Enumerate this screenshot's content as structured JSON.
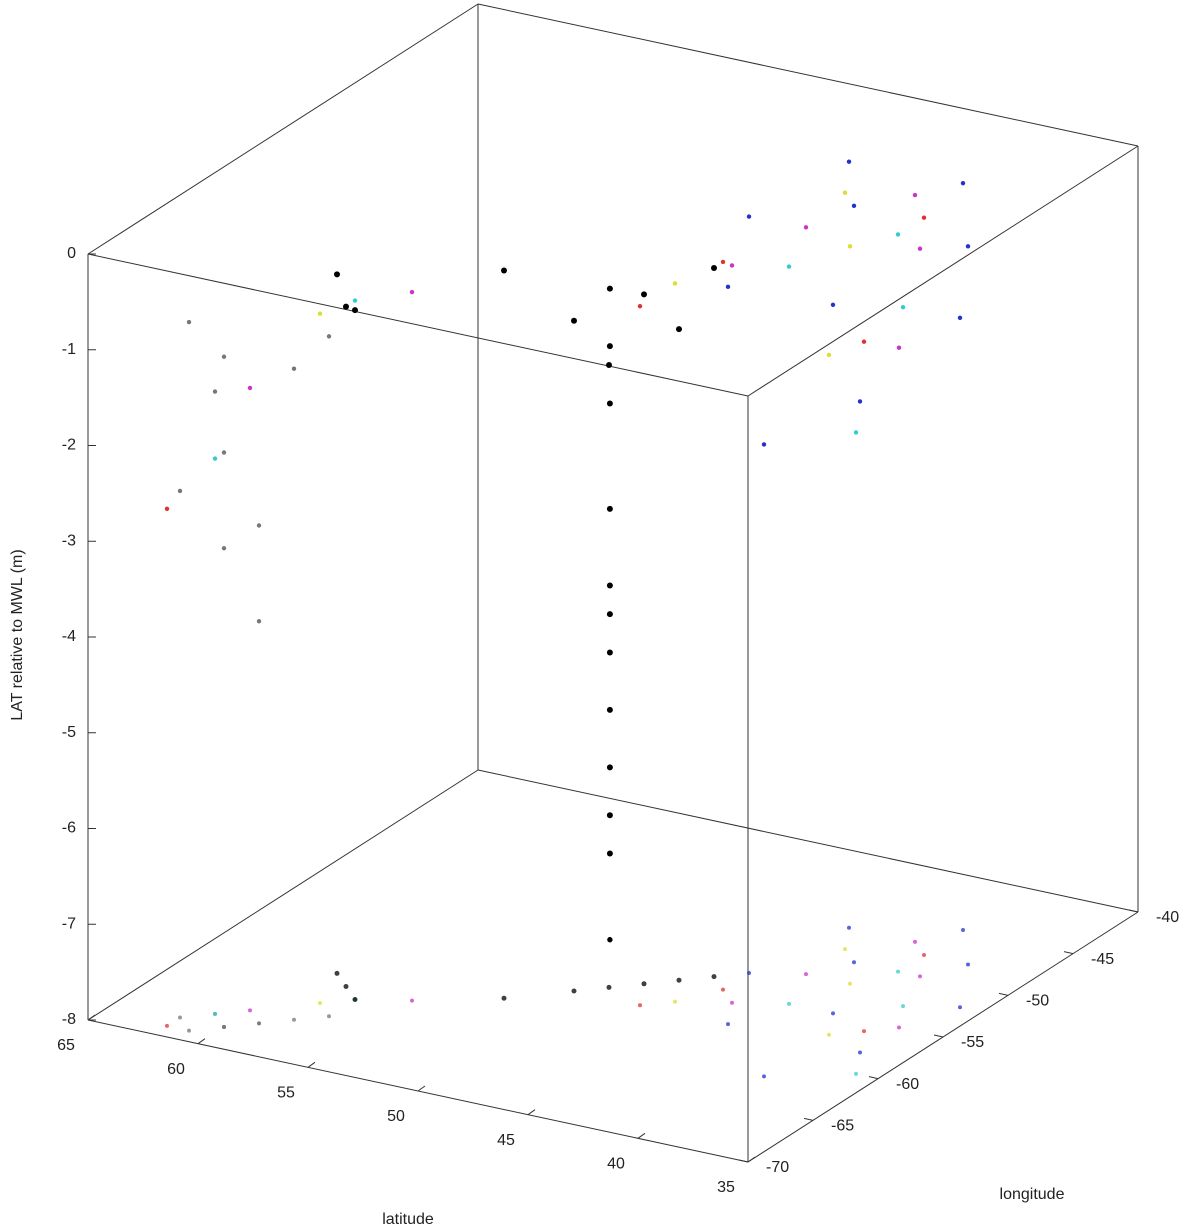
{
  "chart_data": {
    "type": "scatter3d",
    "xlabel": "latitude",
    "ylabel": "longitude",
    "zlabel": "LAT relative to MWL (m)",
    "xlim": [
      35,
      65
    ],
    "xticks": [
      35,
      40,
      45,
      50,
      55,
      60,
      65
    ],
    "ylim": [
      -70,
      -40
    ],
    "yticks": [
      -70,
      -65,
      -60,
      -55,
      -50,
      -45,
      -40
    ],
    "zlim": [
      -8,
      0
    ],
    "zticks": [
      -8,
      -7,
      -6,
      -5,
      -4,
      -3,
      -2,
      -1,
      0
    ],
    "floor_projection": true,
    "series": [
      {
        "color": "#777777",
        "x": [
          60,
          60,
          60,
          59,
          61,
          58,
          62,
          57,
          61,
          59
        ],
        "y": [
          -68,
          -68,
          -68,
          -67,
          -67,
          -66,
          -68,
          -65,
          -69,
          -67
        ],
        "z": [
          -1,
          -2,
          -3,
          -3.8,
          -1.5,
          -1.2,
          -2.5,
          -0.9,
          -0.6,
          -2.8
        ]
      },
      {
        "color": "#2233cc",
        "x": [
          40,
          38,
          42,
          36,
          44,
          40,
          37,
          45,
          43,
          39
        ],
        "y": [
          -45,
          -48,
          -50,
          -52,
          -47,
          -55,
          -58,
          -53,
          -58,
          -62
        ],
        "z": [
          -0.2,
          -0.5,
          -0.1,
          -0.8,
          0,
          -0.6,
          -1.2,
          -0.1,
          -0.3,
          -1.4
        ]
      },
      {
        "color": "#cc33cc",
        "x": [
          41,
          39,
          43,
          37,
          55,
          60,
          44
        ],
        "y": [
          -47,
          -50,
          -52,
          -55,
          -62,
          -66,
          -56
        ],
        "z": [
          -0.2,
          -0.4,
          -0.2,
          -0.9,
          -0.6,
          -1.5,
          -0.3
        ]
      },
      {
        "color": "#33cccc",
        "x": [
          40,
          38,
          42,
          61,
          57,
          36
        ],
        "y": [
          -50,
          -53,
          -55,
          -67,
          -63,
          -60
        ],
        "z": [
          -0.3,
          -0.7,
          -0.3,
          -2.2,
          -0.7,
          -1.3
        ]
      },
      {
        "color": "#dddd33",
        "x": [
          41,
          39,
          43,
          58,
          46
        ],
        "y": [
          -52,
          -57,
          -49,
          -64,
          -57
        ],
        "z": [
          -0.3,
          -0.9,
          -0.1,
          -0.8,
          -0.5
        ]
      },
      {
        "color": "#dd3333",
        "x": [
          40,
          38,
          45,
          62,
          47
        ],
        "y": [
          -48,
          -56,
          -55,
          -69,
          -58
        ],
        "z": [
          -0.3,
          -0.8,
          -0.4,
          -2.6,
          -0.7
        ]
      },
      {
        "color": "#000000",
        "x": [
          51.5,
          51.5,
          51.5,
          51.5,
          51.5,
          51.5,
          51.5,
          51.5,
          51.5,
          51.5,
          51.5,
          48,
          47,
          49,
          46,
          50,
          52,
          58,
          57,
          59
        ],
        "y": [
          -52.7,
          -52.7,
          -52.7,
          -52.7,
          -52.7,
          -52.7,
          -52.7,
          -52.7,
          -52.7,
          -52.7,
          -52.7,
          -56,
          -55,
          -57,
          -54,
          -58,
          -60,
          -62,
          -63,
          -61
        ],
        "z": [
          -1.2,
          -1.8,
          -2.4,
          -3.5,
          -4.3,
          -4.6,
          -5,
          -5.6,
          -6.2,
          -6.7,
          -7.1,
          -0.8,
          -1.2,
          -1.5,
          -0.6,
          -1,
          -0.4,
          -0.9,
          -0.8,
          -0.7
        ]
      }
    ]
  }
}
